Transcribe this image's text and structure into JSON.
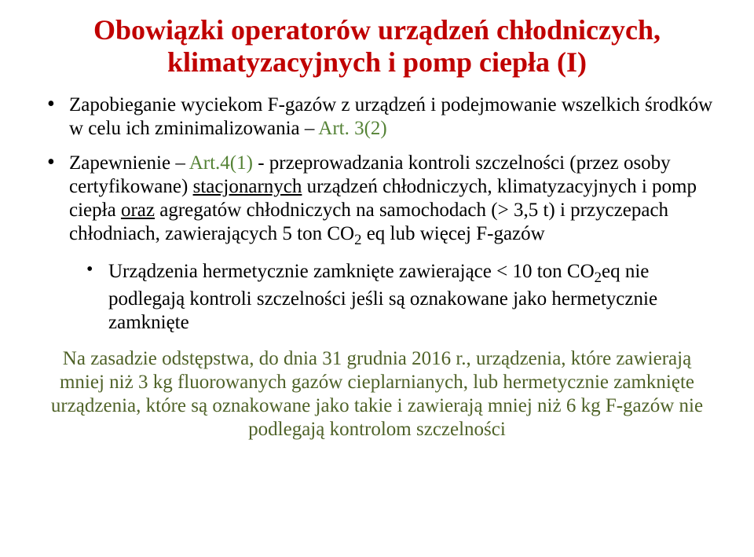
{
  "title": {
    "line1": "Obowiązki operatorów urządzeń chłodniczych,",
    "line2": "klimatyzacyjnych i pomp ciepła (I)",
    "color": "#c00000",
    "fontsize": 36
  },
  "bullets": {
    "item1": {
      "pre": "Zapobieganie wyciekom F-gazów z urządzeń i podejmowanie wszelkich środków w celu ich zminimalizowania – ",
      "green": "Art. 3(2)"
    },
    "item2": {
      "pre": "Zapewnienie – ",
      "green": "Art.4(1)",
      "mid": " - przeprowadzania kontroli szczelności (przez osoby certyfikowane) ",
      "u1": "stacjonarnych",
      "mid2": " urządzeń chłodniczych, klimatyzacyjnych i pomp ciepła ",
      "u2": "oraz",
      "mid3": " agregatów chłodniczych na samochodach (> 3,5 t) i przyczepach chłodniach, zawierających 5 ton CO",
      "sub": "2",
      "tail": " eq lub więcej F-gazów"
    },
    "sub1": {
      "pre": "Urządzenia hermetycznie zamknięte zawierające < 10 ton CO",
      "sub": "2",
      "tail": "eq nie podlegają kontroli szczelności jeśli są oznakowane jako hermetycznie zamknięte"
    },
    "fontsize": 25,
    "green_color": "#548235"
  },
  "footer": {
    "text": "Na zasadzie odstępstwa, do dnia 31 grudnia 2016 r., urządzenia, które zawierają mniej niż 3 kg fluorowanych gazów cieplarnianych, lub hermetycznie zamknięte urządzenia, które są oznakowane jako takie i zawierają mniej niż 6 kg F-gazów nie podlegają kontrolom szczelności",
    "color": "#4f6228",
    "fontsize": 25
  }
}
